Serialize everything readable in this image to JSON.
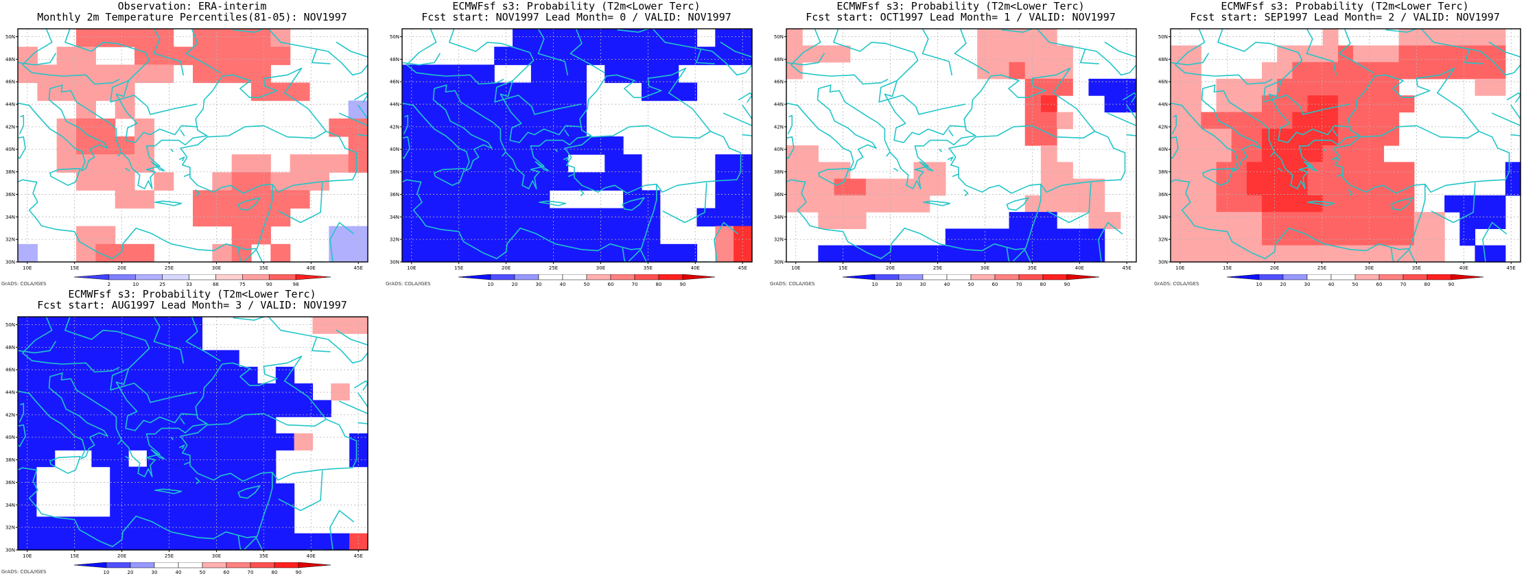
{
  "credit": "GrADS: COLA/IGES",
  "colors": {
    "coast": "#20c5c8",
    "grid": "#b5b5b5",
    "frame": "#000000"
  },
  "axes": {
    "lon_labels": [
      "10E",
      "15E",
      "20E",
      "25E",
      "30E",
      "35E",
      "40E",
      "45E"
    ],
    "lat_labels": [
      "30N",
      "32N",
      "34N",
      "36N",
      "38N",
      "40N",
      "42N",
      "44N",
      "46N",
      "48N",
      "50N"
    ]
  },
  "palettes": {
    "percentile": {
      "labels": [
        "2",
        "10",
        "25",
        "33",
        "66",
        "75",
        "90",
        "98"
      ],
      "colors": [
        "#4040ff",
        "#8080ff",
        "#b0b0ff",
        "#d8d8ff",
        "#ffffff",
        "#ffd0d0",
        "#ffa0a0",
        "#ff6060",
        "#ff2020"
      ]
    },
    "probability": {
      "labels": [
        "10",
        "20",
        "30",
        "40",
        "50",
        "60",
        "70",
        "80",
        "90"
      ],
      "colors": [
        "#1010ff",
        "#5050ff",
        "#9898ff",
        "#ffffff",
        "#ffffff",
        "#ffb0b0",
        "#ff8080",
        "#ff5050",
        "#ff2020",
        "#e00000"
      ]
    }
  },
  "panels": [
    {
      "title1": "Observation: ERA-interim",
      "title2": "Monthly 2m Temperature Percentiles(81-05): NOV1997",
      "palette": "percentile",
      "legend": {
        "codes": {
          "a": "#ffa0a0",
          "b": "#ff7373",
          "c": "#b0b0ff",
          "d": "#ffc8c8"
        }
      },
      "grid": [
        "...bbbbb.bbbba....",
        "a.aa..bbbbbbbb....",
        "aaaaaaaa.bbbb.....",
        ".aaaaa......bbb...",
        "...a.a...........c",
        "..abb.a.........bb",
        "..abbba..........b",
        "..aaaaa....aa.aaab",
        "...aaa.a..abbaaa..",
        ".....aa..bbbbbb...",
        ".........bbbbb....",
        "...aa......bb...cc",
        "c..abbb...ab.b..cc"
      ]
    },
    {
      "title1": "ECMWFsf s3: Probability (T2m<Lower Terc)",
      "title2": "Fcst start: NOV1997  Lead Month= 0 / VALID: NOV1997",
      "palette": "probability",
      "legend": {
        "codes": {
          "b": "#1818ff",
          "a": "#ff8a8a",
          "r": "#ff3030"
        }
      },
      "grid": [
        "......bbbbbbbbbb.bb",
        ".....bbbbbbbbbbbbbb",
        "bbbbb..bbb.bbbb....",
        "bbbbbbbbbb...bbb...",
        "bbbbbbbbbb.........",
        "bbbbbbbbbb.........",
        "bbbbbbbbbbbb.......",
        "bbbbbbbbb..bb....bb",
        "bbbbbbbbbbbbb....bb",
        "bbbbbbbb....bb...bb",
        "bbbbbbbbbbbbbb..bbb",
        "bbbbbbbbbbbbbb...ar",
        "bbbbbbbbbbbbbbbb.ar"
      ]
    },
    {
      "title1": "ECMWFsf s3: Probability (T2m<Lower Terc)",
      "title2": "Fcst start: OCT1997  Lead Month= 1 / VALID: NOV1997",
      "palette": "probability",
      "legend": {
        "codes": {
          "a": "#ffa8a8",
          "c": "#ff6464",
          "r": "#ff3434",
          "b": "#1818ff"
        }
      },
      "grid": [
        "a...........aaaaa...",
        "aaaa........aaaaaa..",
        "a...........aacaaa..",
        "...............ccc.bbb",
        "...............cr...bb",
        "...............cca..",
        "...............cc...",
        "aa..............a...",
        "aaaa....aa......aa..",
        "aaaccaaaaa......aaaa",
        "aaaaaaaaa......aaaaa",
        "..aaa.........bbb..aa",
        "..........bbbbbbbbbb.",
        "..bbbbbbbbbbbbbbbbbb."
      ]
    },
    {
      "title1": "ECMWFsf s3: Probability (T2m<Lower Terc)",
      "title2": "Fcst start: SEP1997  Lead Month= 2 / VALID: NOV1997",
      "palette": "probability",
      "legend": {
        "codes": {
          "a": "#ffa8a8",
          "c": "#ff6464",
          "r": "#ff3434",
          "b": "#1818ff"
        }
      },
      "grid": [
        "..........a....aaaaaaa",
        "aa.....aaaacaaaccccccc",
        "aa....aacccccccccccccc",
        "aa.aaaacccccccc.....aa",
        "aa.aaacccrrccccc......",
        "aaccccccrrrcccc.......",
        "aaaaccrrrrrcccc.......",
        "aaaaccrrrrcccc.........",
        "aaaccrrrrccccccc......b",
        "aaaccrrrrccccccc......b",
        "aaacccrrrrcccccc..bbbb.",
        "aaaaaaccccccccccaa.bbb.",
        "aaaaaaccccccccccaa.b...",
        "aaaaaaaaaaaaaaaaaa..bb."
      ]
    },
    {
      "title1": "ECMWFsf s3: Probability (T2m<Lower Terc)",
      "title2": "Fcst start: AUG1997  Lead Month= 3 / VALID: NOV1997",
      "palette": "probability",
      "legend": {
        "codes": {
          "b": "#1818ff",
          "a": "#ffa8a8",
          "r": "#ff4848"
        }
      },
      "grid": [
        "bbbbbbbbbb......aaa",
        "bbbbbbbbbb.........",
        "bbbbbbbbbbbb.......",
        "bbbbbbbbbbbbb.b....",
        "bbbbbbbbbbbbbbbb.a.",
        "bbbbbbbbbbbbbbbbb..",
        "bbbbbbbbbbbbbb.....",
        "bbbbbbbbbbbbbbba..b",
        "bb..bb.bbbbbbb....b",
        "b....bbbbbbbbb.....",
        "b....bbbbbbbbbb....",
        "b....bbbbbbbbbb....",
        "bbbbbbbbbbbbbbb....",
        "bbbbbbbbbbbbbbbbbbr"
      ]
    }
  ]
}
